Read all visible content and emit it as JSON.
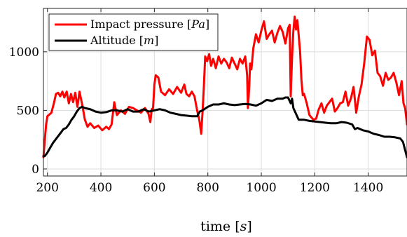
{
  "chart_data": {
    "type": "line",
    "title": "",
    "xlabel_text": "time ",
    "xlabel_unit": "s",
    "ylabel": "",
    "xlim": [
      185,
      1545
    ],
    "ylim": [
      -60,
      1370
    ],
    "grid": true,
    "legend_position": "top-left",
    "x_ticks": [
      200,
      400,
      600,
      800,
      1000,
      1200,
      1400
    ],
    "x_tick_labels": [
      "200",
      "400",
      "600",
      "800",
      "1000",
      "1200",
      "1400"
    ],
    "y_ticks": [
      0,
      500,
      1000
    ],
    "y_tick_labels": [
      "0",
      "500",
      "1000"
    ],
    "colors": {
      "pressure": "#ff0000",
      "altitude": "#000000"
    },
    "series": [
      {
        "key": "pressure",
        "name_text": "Impact pressure ",
        "name_unit": "Pa",
        "x": [
          185,
          195,
          200,
          215,
          225,
          232,
          240,
          248,
          256,
          263,
          272,
          280,
          288,
          296,
          304,
          312,
          320,
          330,
          340,
          350,
          360,
          375,
          390,
          405,
          420,
          430,
          440,
          450,
          460,
          475,
          490,
          505,
          520,
          535,
          550,
          565,
          578,
          585,
          590,
          595,
          600,
          605,
          615,
          625,
          640,
          655,
          670,
          685,
          700,
          712,
          720,
          730,
          740,
          750,
          760,
          768,
          775,
          780,
          785,
          790,
          797,
          805,
          812,
          820,
          830,
          840,
          850,
          860,
          870,
          880,
          890,
          900,
          910,
          920,
          930,
          940,
          947,
          950,
          955,
          958,
          963,
          970,
          980,
          990,
          1000,
          1010,
          1020,
          1030,
          1040,
          1050,
          1060,
          1070,
          1080,
          1090,
          1100,
          1106,
          1110,
          1115,
          1120,
          1125,
          1130,
          1135,
          1140,
          1145,
          1150,
          1155,
          1160,
          1170,
          1180,
          1195,
          1205,
          1215,
          1225,
          1235,
          1245,
          1255,
          1265,
          1275,
          1285,
          1295,
          1305,
          1315,
          1325,
          1335,
          1345,
          1355,
          1365,
          1375,
          1385,
          1395,
          1405,
          1415,
          1425,
          1435,
          1445,
          1455,
          1465,
          1475,
          1485,
          1495,
          1505,
          1515,
          1525,
          1532,
          1538,
          1545
        ],
        "y": [
          100,
          380,
          450,
          480,
          570,
          640,
          650,
          620,
          660,
          610,
          660,
          560,
          640,
          570,
          650,
          530,
          660,
          550,
          420,
          360,
          390,
          350,
          370,
          330,
          360,
          340,
          380,
          570,
          460,
          500,
          470,
          530,
          520,
          500,
          480,
          520,
          470,
          400,
          510,
          520,
          720,
          800,
          780,
          660,
          630,
          680,
          640,
          700,
          650,
          720,
          640,
          620,
          660,
          620,
          500,
          420,
          300,
          480,
          700,
          960,
          920,
          980,
          880,
          940,
          860,
          960,
          900,
          940,
          910,
          860,
          950,
          900,
          850,
          940,
          900,
          960,
          800,
          520,
          700,
          900,
          850,
          1030,
          1150,
          1080,
          1180,
          1260,
          1110,
          1150,
          1180,
          1080,
          1160,
          1220,
          1170,
          1070,
          1200,
          1230,
          620,
          950,
          1180,
          1300,
          1190,
          1270,
          1140,
          1000,
          760,
          630,
          640,
          560,
          460,
          420,
          430,
          510,
          560,
          480,
          540,
          570,
          600,
          490,
          520,
          560,
          570,
          660,
          540,
          600,
          700,
          480,
          620,
          720,
          900,
          1130,
          1100,
          970,
          1010,
          820,
          790,
          710,
          820,
          760,
          780,
          820,
          740,
          630,
          750,
          560,
          520,
          380
        ],
        "line_width": 3
      },
      {
        "key": "altitude",
        "name_text": "Altitude ",
        "name_unit": "m",
        "x": [
          185,
          190,
          200,
          210,
          220,
          230,
          240,
          250,
          260,
          270,
          280,
          290,
          300,
          310,
          320,
          330,
          340,
          360,
          380,
          400,
          420,
          440,
          460,
          480,
          500,
          520,
          540,
          560,
          580,
          600,
          620,
          640,
          660,
          680,
          700,
          720,
          740,
          760,
          770,
          780,
          800,
          820,
          840,
          860,
          880,
          900,
          920,
          940,
          960,
          980,
          1000,
          1020,
          1040,
          1060,
          1080,
          1090,
          1100,
          1110,
          1115,
          1120,
          1140,
          1160,
          1180,
          1200,
          1220,
          1240,
          1260,
          1280,
          1300,
          1320,
          1340,
          1350,
          1360,
          1380,
          1400,
          1420,
          1440,
          1460,
          1480,
          1500,
          1520,
          1530,
          1545
        ],
        "y": [
          110,
          110,
          140,
          180,
          220,
          250,
          280,
          310,
          340,
          350,
          380,
          420,
          450,
          490,
          520,
          530,
          520,
          510,
          490,
          480,
          485,
          500,
          500,
          490,
          510,
          490,
          490,
          510,
          490,
          500,
          510,
          500,
          480,
          470,
          460,
          455,
          450,
          450,
          490,
          500,
          530,
          550,
          550,
          560,
          550,
          545,
          550,
          555,
          550,
          540,
          560,
          590,
          580,
          600,
          600,
          610,
          610,
          560,
          600,
          520,
          420,
          420,
          410,
          405,
          400,
          395,
          390,
          390,
          400,
          395,
          380,
          340,
          350,
          330,
          320,
          300,
          290,
          275,
          275,
          270,
          260,
          230,
          100
        ],
        "line_width": 3
      }
    ]
  }
}
